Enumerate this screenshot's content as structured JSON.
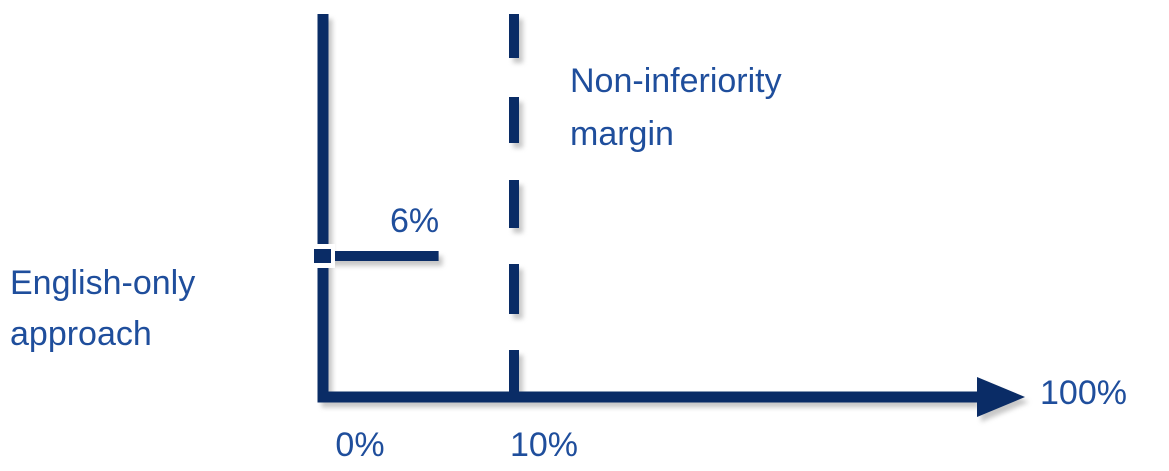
{
  "chart_data": {
    "type": "scatter",
    "title": "",
    "xlabel": "",
    "ylabel": "",
    "xlim": [
      0,
      100
    ],
    "x_tick_labels": [
      "0%",
      "10%",
      "100%"
    ],
    "series": [
      {
        "name": "",
        "label": "English-only approach",
        "point_estimate": 0,
        "upper_bound": 6,
        "upper_bound_label": "6%"
      }
    ],
    "reference_lines": [
      {
        "x": 10,
        "label_lines": [
          "Non-inferiority",
          "margin"
        ],
        "style": "dashed"
      }
    ],
    "row_label_lines": [
      "English-only",
      "approach"
    ],
    "grid": false
  },
  "colors": {
    "primary": "#0a2c66",
    "text": "#1f4e9c",
    "shadow": "#9a9a9a",
    "marker_fill": "#ffffff"
  }
}
